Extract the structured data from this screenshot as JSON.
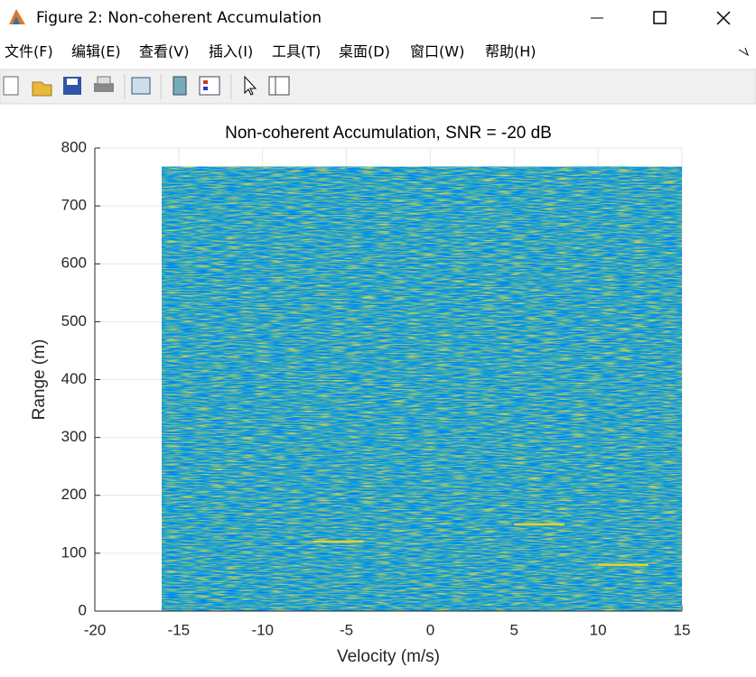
{
  "window": {
    "title": "Figure 2: Non-coherent Accumulation",
    "menus": [
      "文件(F)",
      "编辑(E)",
      "查看(V)",
      "插入(I)",
      "工具(T)",
      "桌面(D)",
      "窗口(W)",
      "帮助(H)"
    ]
  },
  "chart_data": {
    "type": "heatmap",
    "title": "Non-coherent Accumulation, SNR = -20 dB",
    "xlabel": "Velocity (m/s)",
    "ylabel": "Range (m)",
    "xlim": [
      -20,
      15
    ],
    "ylim": [
      0,
      800
    ],
    "xticks": [
      -20,
      -15,
      -10,
      -5,
      0,
      5,
      10,
      15
    ],
    "yticks": [
      0,
      100,
      200,
      300,
      400,
      500,
      600,
      700,
      800
    ],
    "grid": true,
    "data_extent": {
      "x": [
        -16,
        15
      ],
      "y": [
        0,
        768
      ]
    },
    "targets": [
      {
        "x": [
          -7,
          -4
        ],
        "y": 120
      },
      {
        "x": [
          5,
          8
        ],
        "y": 150
      },
      {
        "x": [
          10,
          13
        ],
        "y": 80
      }
    ],
    "target_color": "#e9d227"
  }
}
